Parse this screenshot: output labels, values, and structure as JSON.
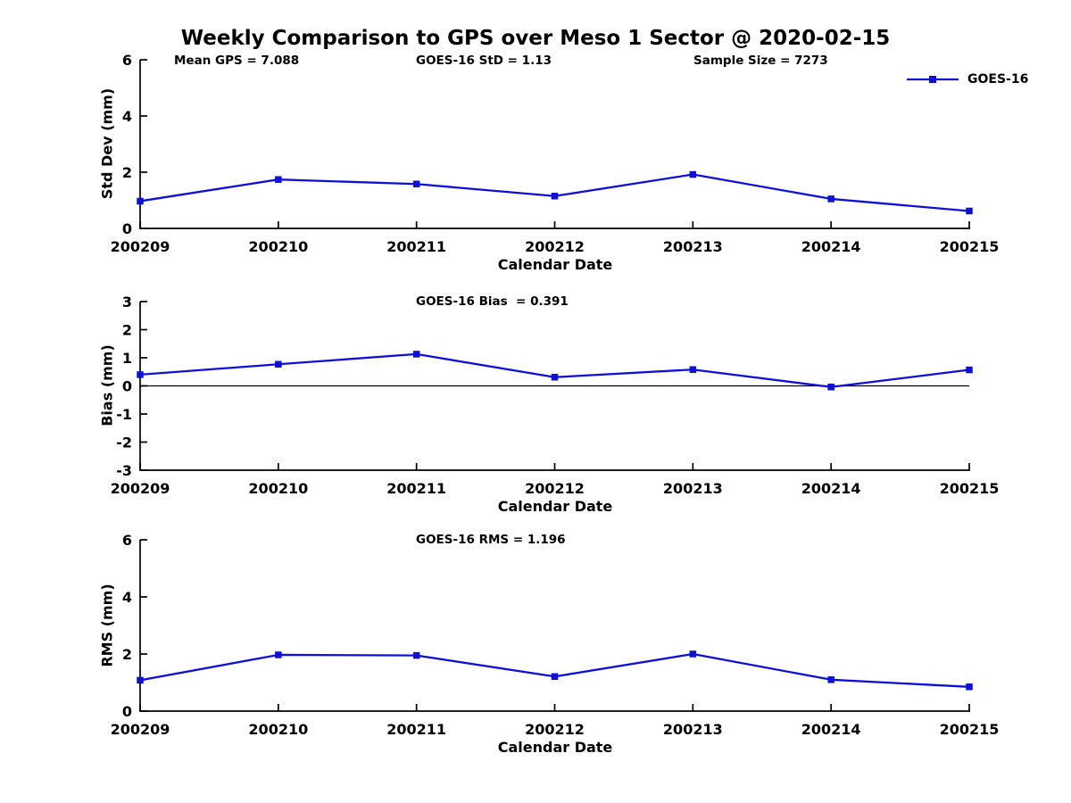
{
  "title": "Weekly Comparison to GPS over Meso 1 Sector @ 2020-02-15",
  "colors": {
    "line": "#0f0fdb",
    "axis": "#000000",
    "background": "#ffffff",
    "text": "#000000"
  },
  "legend": {
    "label": "GOES-16",
    "marker": "filled-square"
  },
  "chart_data": [
    {
      "type": "line",
      "panel": "std-dev",
      "annotations": [
        {
          "text": "Mean GPS = 7.088"
        },
        {
          "text": "GOES-16 StD = 1.13"
        },
        {
          "text": "Sample Size = 7273"
        }
      ],
      "categories": [
        "200209",
        "200210",
        "200211",
        "200212",
        "200213",
        "200214",
        "200215"
      ],
      "series": [
        {
          "name": "GOES-16",
          "values": [
            0.97,
            1.74,
            1.58,
            1.15,
            1.92,
            1.05,
            0.62
          ]
        }
      ],
      "xlabel": "Calendar Date",
      "ylabel": "Std Dev (mm)",
      "ylim": [
        0,
        6
      ],
      "yticks": [
        0,
        2,
        4,
        6
      ],
      "grid": false,
      "zero_line": false,
      "legend_position": "top-right-outside"
    },
    {
      "type": "line",
      "panel": "bias",
      "annotations": [
        {
          "text": "GOES-16 Bias  = 0.391"
        }
      ],
      "categories": [
        "200209",
        "200210",
        "200211",
        "200212",
        "200213",
        "200214",
        "200215"
      ],
      "series": [
        {
          "name": "GOES-16",
          "values": [
            0.4,
            0.77,
            1.13,
            0.31,
            0.58,
            -0.04,
            0.57
          ]
        }
      ],
      "xlabel": "Calendar Date",
      "ylabel": "Bias (mm)",
      "ylim": [
        -3,
        3
      ],
      "yticks": [
        -3,
        -2,
        -1,
        0,
        1,
        2,
        3
      ],
      "grid": false,
      "zero_line": true
    },
    {
      "type": "line",
      "panel": "rms",
      "annotations": [
        {
          "text": "GOES-16 RMS = 1.196"
        }
      ],
      "categories": [
        "200209",
        "200210",
        "200211",
        "200212",
        "200213",
        "200214",
        "200215"
      ],
      "series": [
        {
          "name": "GOES-16",
          "values": [
            1.08,
            1.97,
            1.95,
            1.21,
            2.0,
            1.1,
            0.85
          ]
        }
      ],
      "xlabel": "Calendar Date",
      "ylabel": "RMS (mm)",
      "ylim": [
        0,
        6
      ],
      "yticks": [
        0,
        2,
        4,
        6
      ],
      "grid": false,
      "zero_line": false
    }
  ]
}
